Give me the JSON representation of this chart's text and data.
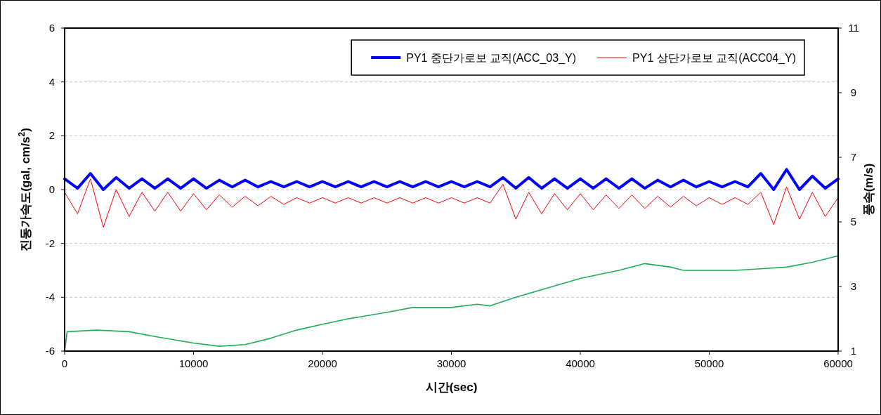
{
  "chart_data": {
    "type": "line",
    "xlabel": "시간(sec)",
    "ylabel": "진동가속도(gal, cm/s$^{2}$)",
    "y2label": "풍속(m/s)",
    "xlim": [
      0,
      60000
    ],
    "xticks": [
      0,
      10000,
      20000,
      30000,
      40000,
      50000,
      60000
    ],
    "ylim": [
      -6,
      6
    ],
    "yticks": [
      -6,
      -4,
      -2,
      0,
      2,
      4,
      6
    ],
    "y2lim": [
      1,
      11
    ],
    "y2ticks": [
      1,
      3,
      5,
      7,
      9,
      11
    ],
    "grid": "y",
    "legend": "top right",
    "x": [
      0,
      1000,
      2000,
      3000,
      4000,
      5000,
      6000,
      7000,
      8000,
      9000,
      10000,
      11000,
      12000,
      13000,
      14000,
      15000,
      16000,
      17000,
      18000,
      19000,
      20000,
      21000,
      22000,
      23000,
      24000,
      25000,
      26000,
      27000,
      28000,
      29000,
      30000,
      31000,
      32000,
      33000,
      34000,
      35000,
      36000,
      37000,
      38000,
      39000,
      40000,
      41000,
      42000,
      43000,
      44000,
      45000,
      46000,
      47000,
      48000,
      49000,
      50000,
      51000,
      52000,
      53000,
      54000,
      55000,
      56000,
      57000,
      58000,
      59000,
      60000
    ],
    "series": [
      {
        "name": "PY1 중단가로보 교직(ACC_03_Y)",
        "color": "#0000ff",
        "values": [
          0.4,
          0.05,
          0.6,
          0.0,
          0.45,
          0.05,
          0.4,
          0.05,
          0.4,
          0.05,
          0.4,
          0.05,
          0.35,
          0.1,
          0.35,
          0.1,
          0.3,
          0.1,
          0.3,
          0.1,
          0.3,
          0.1,
          0.3,
          0.1,
          0.3,
          0.1,
          0.3,
          0.1,
          0.3,
          0.1,
          0.3,
          0.1,
          0.3,
          0.1,
          0.45,
          0.05,
          0.45,
          0.05,
          0.4,
          0.05,
          0.4,
          0.05,
          0.4,
          0.05,
          0.4,
          0.05,
          0.35,
          0.1,
          0.35,
          0.1,
          0.3,
          0.1,
          0.3,
          0.1,
          0.6,
          0.0,
          0.75,
          0.0,
          0.5,
          0.05,
          0.4
        ]
      },
      {
        "name": "PY1 상단가로보 교직(ACC04_Y)",
        "color": "#ff0000",
        "values": [
          -0.1,
          -0.9,
          0.4,
          -1.4,
          0.0,
          -1.0,
          -0.1,
          -0.8,
          -0.1,
          -0.8,
          -0.15,
          -0.75,
          -0.2,
          -0.65,
          -0.25,
          -0.6,
          -0.25,
          -0.55,
          -0.3,
          -0.5,
          -0.3,
          -0.5,
          -0.3,
          -0.5,
          -0.3,
          -0.5,
          -0.3,
          -0.5,
          -0.3,
          -0.5,
          -0.3,
          -0.5,
          -0.3,
          -0.5,
          0.2,
          -1.1,
          -0.1,
          -0.9,
          -0.15,
          -0.75,
          -0.15,
          -0.75,
          -0.2,
          -0.7,
          -0.2,
          -0.7,
          -0.25,
          -0.65,
          -0.25,
          -0.6,
          -0.3,
          -0.55,
          -0.3,
          -0.55,
          -0.1,
          -1.3,
          0.1,
          -1.1,
          -0.1,
          -1.0,
          -0.3
        ]
      },
      {
        "color": "#1fad5a",
        "axis": "y2",
        "x": [
          0,
          200,
          2500,
          5000,
          7000,
          10000,
          12000,
          14000,
          16000,
          18000,
          20000,
          22000,
          25000,
          27000,
          30000,
          32000,
          33000,
          35000,
          37000,
          40000,
          43000,
          45000,
          47000,
          48000,
          50000,
          52000,
          54000,
          56000,
          58000,
          60000
        ],
        "values": [
          1.0,
          1.6,
          1.65,
          1.6,
          1.45,
          1.25,
          1.15,
          1.2,
          1.4,
          1.65,
          1.83,
          2.0,
          2.2,
          2.35,
          2.35,
          2.45,
          2.4,
          2.67,
          2.9,
          3.25,
          3.5,
          3.71,
          3.6,
          3.5,
          3.5,
          3.5,
          3.55,
          3.6,
          3.75,
          3.95
        ]
      }
    ]
  }
}
